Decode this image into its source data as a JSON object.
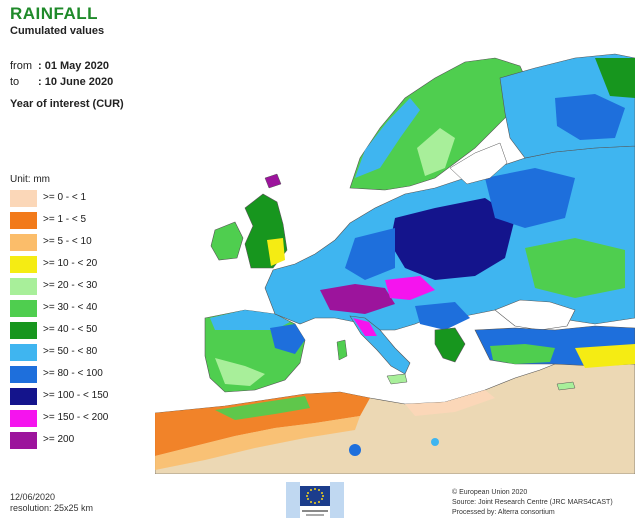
{
  "header": {
    "title": "RAINFALL",
    "subtitle": "Cumulated values",
    "from_label": "from",
    "from_value": ": 01 May 2020",
    "to_label": "to",
    "to_value": ": 10 June 2020",
    "year_of_interest": "Year of interest (CUR)"
  },
  "legend": {
    "unit": "Unit: mm",
    "items": [
      {
        "label": ">= 0 - < 1",
        "color": "#fbd7b8"
      },
      {
        "label": ">= 1 - < 5",
        "color": "#f27a1a"
      },
      {
        "label": ">= 5 - < 10",
        "color": "#fbbd6a"
      },
      {
        "label": ">= 10 - < 20",
        "color": "#f5ec13"
      },
      {
        "label": ">= 20 - < 30",
        "color": "#a8ef9a"
      },
      {
        "label": ">= 30 - < 40",
        "color": "#4fce4f"
      },
      {
        "label": ">= 40 - < 50",
        "color": "#17961e"
      },
      {
        "label": ">= 50 - < 80",
        "color": "#3fb5f0"
      },
      {
        "label": ">= 80 - < 100",
        "color": "#1e6fdc"
      },
      {
        "label": ">= 100 - < 150",
        "color": "#14148c"
      },
      {
        "label": ">= 150 - < 200",
        "color": "#f514ee"
      },
      {
        "label": ">= 200",
        "color": "#9c149c"
      }
    ]
  },
  "colors": {
    "sea": "#ffffff",
    "coast": "#555555",
    "desert": "#ecd8b4"
  },
  "footer": {
    "date": "12/06/2020",
    "resolution": "resolution: 25x25 km",
    "copyright": "© European Union 2020",
    "source": "Source: Joint Research Centre (JRC MARS4CAST)",
    "processed": "Processed by: Alterra consortium"
  }
}
